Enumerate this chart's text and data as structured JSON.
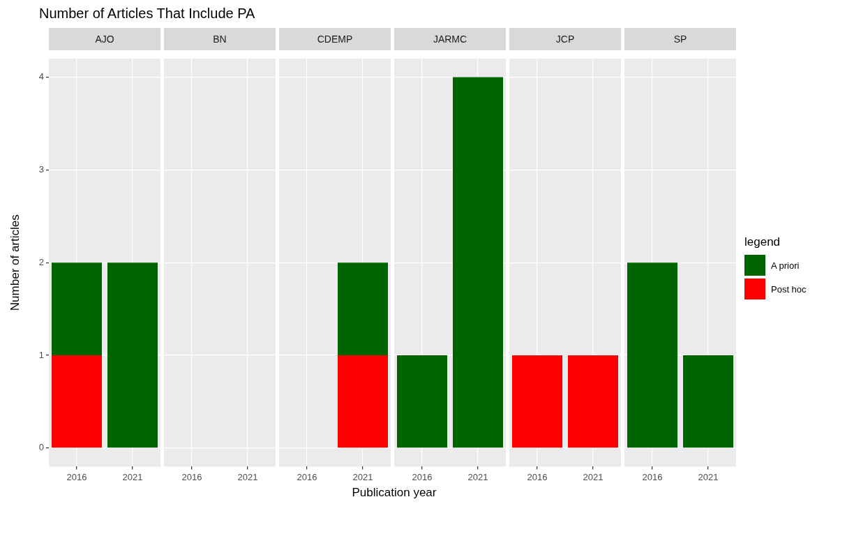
{
  "chart_data": [
    {
      "type": "bar",
      "title": "AJO",
      "annotations": [
        "Number of Articles That Include PA"
      ],
      "ylabel": "Number of articles",
      "stacked": true,
      "categories": [
        "2016",
        "2021"
      ],
      "ylim": [
        -0.2,
        4.2
      ],
      "yticks": [
        0,
        1,
        2,
        3,
        4
      ],
      "grid": true,
      "series": [
        {
          "color": "#ff0000",
          "values": [
            1,
            0
          ]
        },
        {
          "color": "#006400",
          "values": [
            1,
            2
          ]
        }
      ]
    },
    {
      "type": "bar",
      "title": "BN",
      "stacked": true,
      "categories": [
        "2016",
        "2021"
      ],
      "ylim": [
        -0.2,
        4.2
      ],
      "yticks": [
        0,
        1,
        2,
        3,
        4
      ],
      "grid": true,
      "tick_labels": "x",
      "series": [
        {
          "color": "#ff0000",
          "values": [
            0,
            0
          ]
        },
        {
          "color": "#006400",
          "values": [
            0,
            0
          ]
        }
      ]
    },
    {
      "type": "bar",
      "title": "CDEMP",
      "xlabel": "Publication year",
      "stacked": true,
      "categories": [
        "2016",
        "2021"
      ],
      "ylim": [
        -0.2,
        4.2
      ],
      "yticks": [
        0,
        1,
        2,
        3,
        4
      ],
      "grid": true,
      "tick_labels": "x",
      "series": [
        {
          "color": "#ff0000",
          "values": [
            0,
            1
          ]
        },
        {
          "color": "#006400",
          "values": [
            0,
            1
          ]
        }
      ]
    },
    {
      "type": "bar",
      "title": "JARMC",
      "stacked": true,
      "categories": [
        "2016",
        "2021"
      ],
      "ylim": [
        -0.2,
        4.2
      ],
      "yticks": [
        0,
        1,
        2,
        3,
        4
      ],
      "grid": true,
      "tick_labels": "x",
      "series": [
        {
          "color": "#ff0000",
          "values": [
            0,
            0
          ]
        },
        {
          "color": "#006400",
          "values": [
            1,
            4
          ]
        }
      ]
    },
    {
      "type": "bar",
      "title": "JCP",
      "stacked": true,
      "categories": [
        "2016",
        "2021"
      ],
      "ylim": [
        -0.2,
        4.2
      ],
      "yticks": [
        0,
        1,
        2,
        3,
        4
      ],
      "grid": true,
      "tick_labels": "x",
      "series": [
        {
          "color": "#ff0000",
          "values": [
            1,
            1
          ]
        },
        {
          "color": "#006400",
          "values": [
            0,
            0
          ]
        }
      ]
    },
    {
      "type": "bar",
      "title": "SP",
      "stacked": true,
      "categories": [
        "2016",
        "2021"
      ],
      "ylim": [
        -0.2,
        4.2
      ],
      "yticks": [
        0,
        1,
        2,
        3,
        4
      ],
      "grid": true,
      "tick_labels": "x",
      "legend": "right",
      "legend_title": "legend",
      "series": [
        {
          "name": "Post hoc",
          "color": "#ff0000",
          "values": [
            0,
            0
          ]
        },
        {
          "name": "A priori",
          "color": "#006400",
          "values": [
            2,
            1
          ]
        }
      ]
    }
  ]
}
